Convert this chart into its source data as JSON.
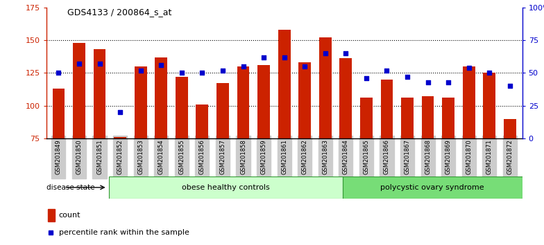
{
  "title": "GDS4133 / 200864_s_at",
  "samples": [
    "GSM201849",
    "GSM201850",
    "GSM201851",
    "GSM201852",
    "GSM201853",
    "GSM201854",
    "GSM201855",
    "GSM201856",
    "GSM201857",
    "GSM201858",
    "GSM201859",
    "GSM201861",
    "GSM201862",
    "GSM201863",
    "GSM201864",
    "GSM201865",
    "GSM201866",
    "GSM201867",
    "GSM201868",
    "GSM201869",
    "GSM201870",
    "GSM201871",
    "GSM201872"
  ],
  "counts": [
    113,
    148,
    143,
    76,
    130,
    137,
    122,
    101,
    117,
    130,
    131,
    158,
    133,
    152,
    136,
    106,
    120,
    106,
    107,
    106,
    130,
    125,
    90
  ],
  "percentiles": [
    50,
    57,
    57,
    20,
    52,
    56,
    50,
    50,
    52,
    55,
    62,
    62,
    55,
    65,
    65,
    46,
    52,
    47,
    43,
    43,
    54,
    50,
    40
  ],
  "obese_count": 13,
  "bar_color": "#cc2200",
  "dot_color": "#0000cc",
  "ylim_left": [
    75,
    175
  ],
  "ylim_right": [
    0,
    100
  ],
  "yticks_left": [
    75,
    100,
    125,
    150,
    175
  ],
  "yticks_right": [
    0,
    25,
    50,
    75,
    100
  ],
  "yticklabels_right": [
    "0",
    "25",
    "50",
    "75",
    "100%"
  ],
  "bg_color": "#ffffff",
  "group_bg_obese": "#ccffcc",
  "group_bg_pcos": "#77dd77",
  "tick_label_bg": "#cccccc"
}
